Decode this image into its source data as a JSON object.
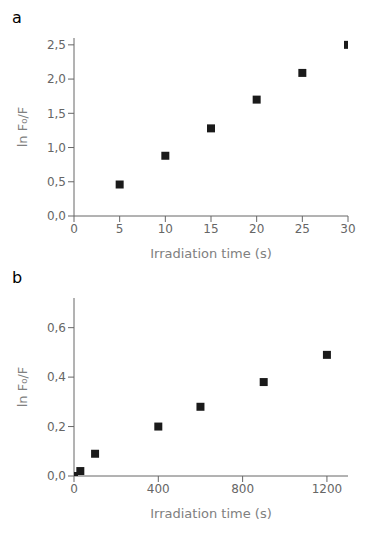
{
  "chart_data": [
    {
      "type": "scatter",
      "title": "a",
      "x": [
        5,
        10,
        15,
        20,
        25,
        30
      ],
      "values": [
        0.46,
        0.88,
        1.28,
        1.7,
        2.09,
        2.5
      ],
      "xlabel": "Irradiation time (s)",
      "ylabel": "ln F₀/F",
      "xlim": [
        0,
        30
      ],
      "ylim": [
        0.0,
        2.6
      ],
      "xticks": [
        0,
        5,
        10,
        15,
        20,
        25,
        30
      ],
      "yticks": [
        {
          "value": 0.0,
          "label": "0,0"
        },
        {
          "value": 0.5,
          "label": "0,5"
        },
        {
          "value": 1.0,
          "label": "1,0"
        },
        {
          "value": 1.5,
          "label": "1,5"
        },
        {
          "value": 2.0,
          "label": "2,0"
        },
        {
          "value": 2.5,
          "label": "2,5"
        }
      ],
      "marker": "square",
      "color": "#1a1a1a"
    },
    {
      "type": "scatter",
      "title": "b",
      "x": [
        0,
        30,
        100,
        400,
        600,
        900,
        1200
      ],
      "values": [
        0.0,
        0.02,
        0.09,
        0.2,
        0.28,
        0.38,
        0.49
      ],
      "xlabel": "Irradiation time (s)",
      "ylabel": "ln F₀/F",
      "xlim": [
        0,
        1300
      ],
      "ylim": [
        0.0,
        0.72
      ],
      "xticks": [
        0,
        400,
        800,
        1200
      ],
      "yticks": [
        {
          "value": 0.0,
          "label": "0,0"
        },
        {
          "value": 0.2,
          "label": "0,2"
        },
        {
          "value": 0.4,
          "label": "0,4"
        },
        {
          "value": 0.6,
          "label": "0,6"
        }
      ],
      "marker": "square",
      "color": "#1a1a1a"
    }
  ]
}
